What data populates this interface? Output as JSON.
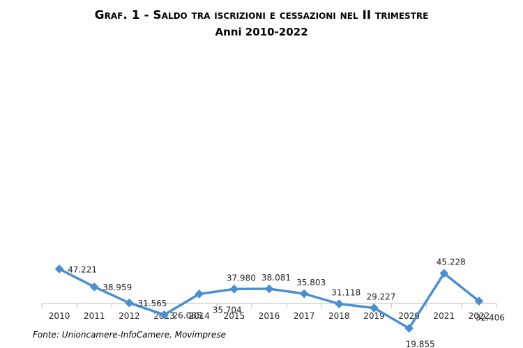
{
  "chart_data": {
    "type": "line",
    "title": "Graf. 1 - Saldo tra iscrizioni e cessazioni nel II trimestre",
    "subtitle": "Anni 2010-2022",
    "categories": [
      "2010",
      "2011",
      "2012",
      "2013",
      "2014",
      "2015",
      "2016",
      "2017",
      "2018",
      "2019",
      "2020",
      "2021",
      "2022"
    ],
    "series": [
      {
        "values": [
          47221,
          38959,
          31565,
          26085,
          35704,
          37980,
          38081,
          35803,
          31118,
          29227,
          19855,
          45228,
          32406
        ],
        "labels": [
          "47.221",
          "38.959",
          "31.565",
          "26.085",
          "35.704",
          "37.980",
          "38.081",
          "35.803",
          "31.118",
          "29.227",
          "19.855",
          "45.228",
          "32.406"
        ],
        "color": "#4a8fcf"
      }
    ],
    "ylim": [
      0,
      50000
    ],
    "grid": false,
    "legend": "none",
    "xlabel": "",
    "ylabel": ""
  },
  "source": "Fonte: Unioncamere-InfoCamere, Movimprese"
}
